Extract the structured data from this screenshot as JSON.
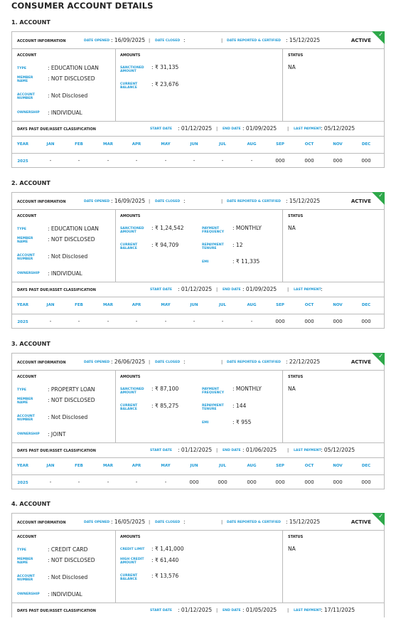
{
  "page": {
    "title": "CONSUMER ACCOUNT DETAILS"
  },
  "labels": {
    "account_information": "ACCOUNT INFORMATION",
    "date_opened": "DATE OPENED",
    "date_closed": "DATE CLOSED",
    "date_reported": "DATE REPORTED & CERTIFIED",
    "account": "ACCOUNT",
    "amounts": "AMOUNTS",
    "status": "STATUS",
    "type": "TYPE",
    "member_name": "MEMBER NAME",
    "account_number": "ACCOUNT NUMBER",
    "ownership": "OWNERSHIP",
    "sanctioned_amount": "SANCTIONED AMOUNT",
    "current_balance": "CURRENT BALANCE",
    "credit_limit": "CREDIT LIMIT",
    "high_credit_amount": "HIGH CREDIT AMOUNT",
    "payment_frequency": "PAYMENT FREQUENCY",
    "repayment_tenure": "REPAYMENT TENURE",
    "emi": "EMI",
    "dpd": "DAYS PAST DUE/ASSET CLASSIFICATION",
    "start_date": "START DATE",
    "end_date": "END DATE",
    "last_payment": "LAST PAYMENT",
    "year": "YEAR",
    "months": [
      "JAN",
      "FEB",
      "MAR",
      "APR",
      "MAY",
      "JUN",
      "JUL",
      "AUG",
      "SEP",
      "OCT",
      "NOV",
      "DEC"
    ]
  },
  "colors": {
    "accent": "#1e9ad6",
    "active": "#2ea84a",
    "border": "#bbbbbb"
  },
  "accounts": [
    {
      "title": "1. ACCOUNT",
      "date_opened": "16/09/2025",
      "date_closed": "",
      "date_reported": "15/12/2025",
      "badge": "ACTIVE",
      "type": "EDUCATION LOAN",
      "member_name": "NOT DISCLOSED",
      "account_number": "Not Disclosed",
      "ownership": "INDIVIDUAL",
      "amount1": "₹ 31,135",
      "amount2": "₹ 23,676",
      "status": "NA",
      "start_date": "01/12/2025",
      "end_date": "01/09/2025",
      "last_payment": "05/12/2025",
      "year": "2025",
      "month_values": [
        "-",
        "-",
        "-",
        "-",
        "-",
        "-",
        "-",
        "-",
        "000",
        "000",
        "000",
        "000"
      ]
    },
    {
      "title": "2. ACCOUNT",
      "date_opened": "16/09/2025",
      "date_closed": "",
      "date_reported": "15/12/2025",
      "badge": "ACTIVE",
      "type": "EDUCATION LOAN",
      "member_name": "NOT DISCLOSED",
      "account_number": "Not Disclosed",
      "ownership": "INDIVIDUAL",
      "amount1": "₹ 1,24,542",
      "amount2": "₹ 94,709",
      "payment_frequency": "MONTHLY",
      "repayment_tenure": "12",
      "emi": "₹ 11,335",
      "status": "NA",
      "start_date": "01/12/2025",
      "end_date": "01/09/2025",
      "last_payment": "",
      "year": "2025",
      "month_values": [
        "-",
        "-",
        "-",
        "-",
        "-",
        "-",
        "-",
        "-",
        "000",
        "000",
        "000",
        "000"
      ]
    },
    {
      "title": "3. ACCOUNT",
      "date_opened": "26/06/2025",
      "date_closed": "",
      "date_reported": "22/12/2025",
      "badge": "ACTIVE",
      "type": "PROPERTY LOAN",
      "member_name": "NOT DISCLOSED",
      "account_number": "Not Disclosed",
      "ownership": "JOINT",
      "amount1": "₹ 87,100",
      "amount2": "₹ 85,275",
      "payment_frequency": "MONTHLY",
      "repayment_tenure": "144",
      "emi": "₹ 955",
      "status": "NA",
      "start_date": "01/12/2025",
      "end_date": "01/06/2025",
      "last_payment": "05/12/2025",
      "year": "2025",
      "month_values": [
        "-",
        "-",
        "-",
        "-",
        "-",
        "000",
        "000",
        "000",
        "000",
        "000",
        "000",
        "000"
      ]
    },
    {
      "title": "4. ACCOUNT",
      "date_opened": "16/05/2025",
      "date_closed": "",
      "date_reported": "15/12/2025",
      "badge": "ACTIVE",
      "type": "CREDIT CARD",
      "member_name": "NOT DISCLOSED",
      "account_number": "Not Disclosed",
      "ownership": "INDIVIDUAL",
      "amount1": "₹ 1,41,000",
      "amount2": "₹ 61,440",
      "amount3": "₹ 13,576",
      "status": "NA",
      "start_date": "01/12/2025",
      "end_date": "01/05/2025",
      "last_payment": "17/11/2025"
    }
  ]
}
